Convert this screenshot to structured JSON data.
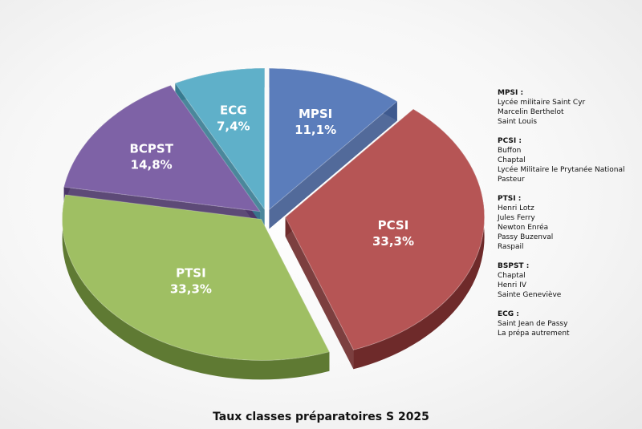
{
  "chart_data": {
    "type": "pie",
    "title": "Taux classes préparatoires S 2025",
    "slices": [
      {
        "name": "MPSI",
        "value": 11.1,
        "label": "11,1%",
        "color": "#5b7dbb",
        "side": "#3f5a8f",
        "exploded": false
      },
      {
        "name": "PCSI",
        "value": 33.3,
        "label": "33,3%",
        "color": "#b65555",
        "side": "#6e2a2a",
        "exploded": true
      },
      {
        "name": "PTSI",
        "value": 33.3,
        "label": "33,3%",
        "color": "#9fbf63",
        "side": "#5f7a33",
        "exploded": false
      },
      {
        "name": "BCPST",
        "value": 14.8,
        "label": "14,8%",
        "color": "#7e62a6",
        "side": "#4b3668",
        "exploded": false
      },
      {
        "name": "ECG",
        "value": 7.4,
        "label": "7,4%",
        "color": "#5fb0c9",
        "side": "#377a90",
        "exploded": false
      }
    ]
  },
  "legend": [
    {
      "heading": "MPSI :",
      "items": [
        "Lycée militaire Saint Cyr",
        "Marcelin Berthelot",
        "Saint Louis"
      ]
    },
    {
      "heading": "PCSI :",
      "items": [
        "Buffon",
        "Chaptal",
        "Lycée Militaire le Prytanée National",
        "Pasteur"
      ]
    },
    {
      "heading": "PTSI :",
      "items": [
        "Henri Lotz",
        "Jules Ferry",
        "Newton Enréa",
        "Passy Buzenval",
        "Raspail"
      ]
    },
    {
      "heading": "BSPST :",
      "items": [
        "Chaptal",
        "Henri IV",
        "Sainte Geneviève"
      ]
    },
    {
      "heading": "ECG :",
      "items": [
        "Saint Jean de Passy",
        "La prépa autrement"
      ]
    }
  ]
}
